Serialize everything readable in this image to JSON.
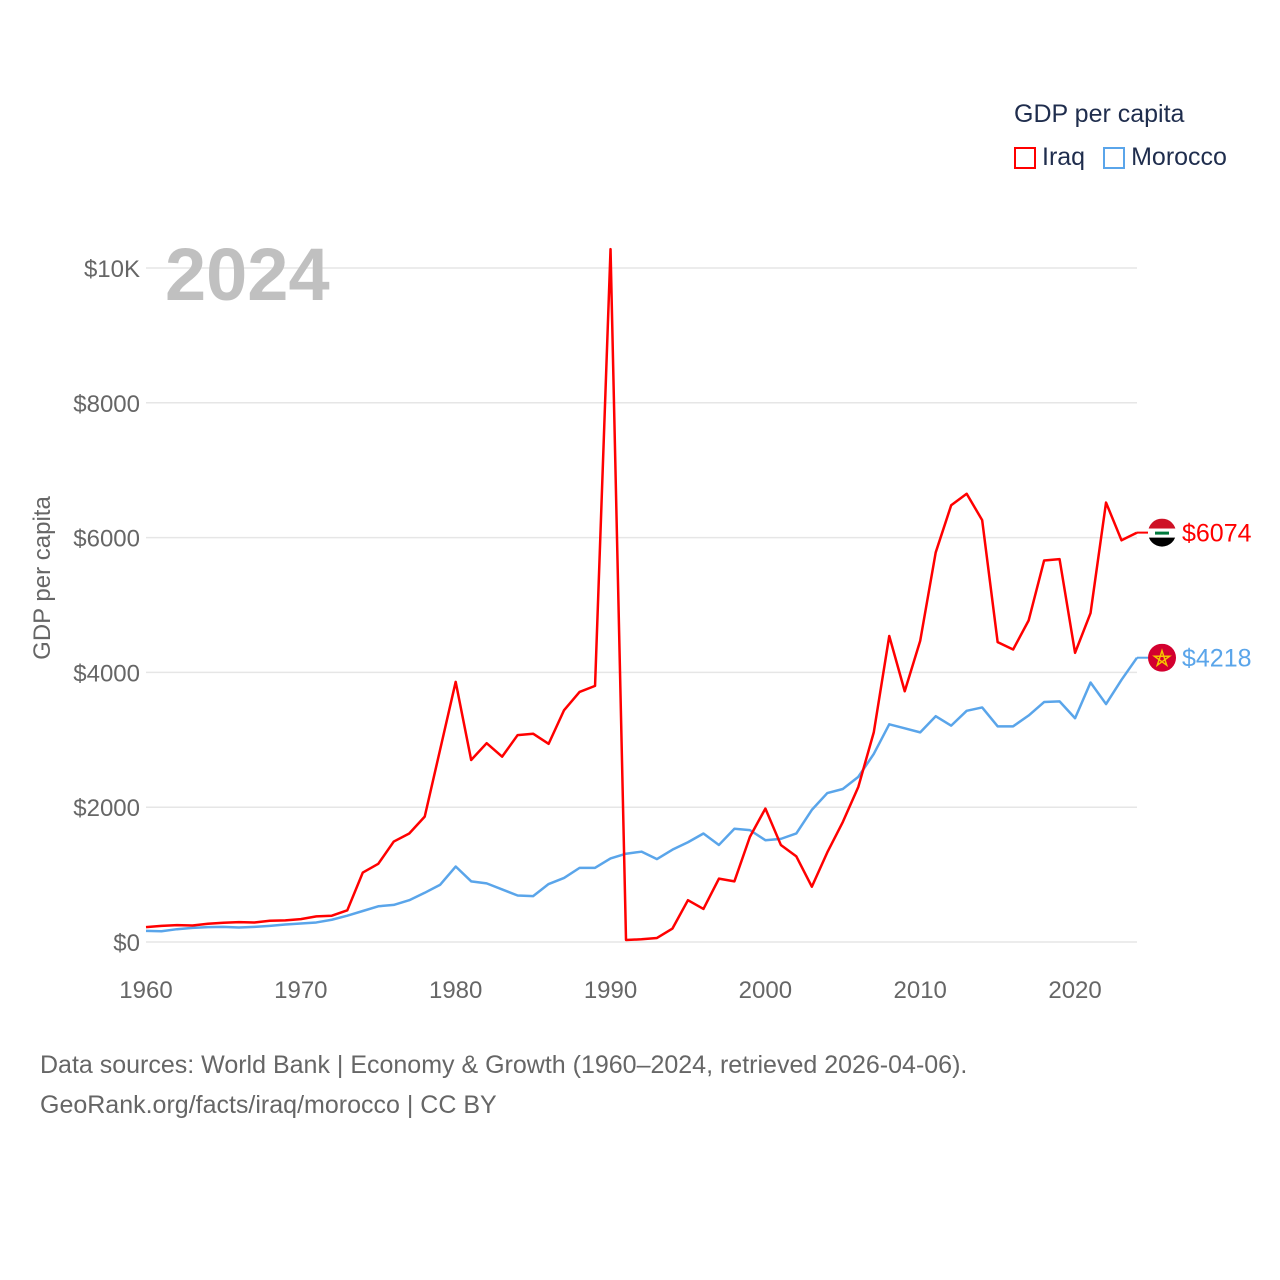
{
  "chart_data": {
    "type": "line",
    "title": "GDP per capita",
    "year_label": "2024",
    "ylabel": "GDP per capita",
    "xlabel": "",
    "xlim": [
      1960,
      2024
    ],
    "ylim": [
      0,
      10000
    ],
    "x_ticks": [
      "1960",
      "1970",
      "1980",
      "1990",
      "2000",
      "2010",
      "2020"
    ],
    "x_tick_values": [
      1960,
      1970,
      1980,
      1990,
      2000,
      2010,
      2020
    ],
    "y_ticks": [
      "$0",
      "$2000",
      "$4000",
      "$6000",
      "$8000",
      "$10K"
    ],
    "y_tick_values": [
      0,
      2000,
      4000,
      6000,
      8000,
      10000
    ],
    "grid": true,
    "legend_position": "top-right",
    "x": [
      1960,
      1961,
      1962,
      1963,
      1964,
      1965,
      1966,
      1967,
      1968,
      1969,
      1970,
      1971,
      1972,
      1973,
      1974,
      1975,
      1976,
      1977,
      1978,
      1979,
      1980,
      1981,
      1982,
      1983,
      1984,
      1985,
      1986,
      1987,
      1988,
      1989,
      1990,
      1991,
      1992,
      1993,
      1994,
      1995,
      1996,
      1997,
      1998,
      1999,
      2000,
      2001,
      2002,
      2003,
      2004,
      2005,
      2006,
      2007,
      2008,
      2009,
      2010,
      2011,
      2012,
      2013,
      2014,
      2015,
      2016,
      2017,
      2018,
      2019,
      2020,
      2021,
      2022,
      2023,
      2024
    ],
    "series": [
      {
        "name": "Iraq",
        "color": "#ff0000",
        "end_label": "$6074",
        "flag": "iraq-flag",
        "values": [
          220,
          240,
          250,
          245,
          270,
          285,
          295,
          290,
          315,
          320,
          340,
          380,
          390,
          470,
          1030,
          1160,
          1490,
          1610,
          1860,
          2860,
          3860,
          2700,
          2950,
          2750,
          3070,
          3090,
          2940,
          3440,
          3710,
          3800,
          10280,
          30,
          40,
          60,
          200,
          620,
          490,
          940,
          900,
          1560,
          1980,
          1440,
          1270,
          820,
          1330,
          1780,
          2300,
          3110,
          4540,
          3720,
          4470,
          5780,
          6480,
          6650,
          6260,
          4450,
          4340,
          4770,
          5660,
          5680,
          4290,
          4880,
          6520,
          5960,
          6074
        ]
      },
      {
        "name": "Morocco",
        "color": "#5aa5ea",
        "end_label": "$4218",
        "flag": "morocco-flag",
        "values": [
          165,
          160,
          190,
          210,
          220,
          225,
          215,
          225,
          240,
          260,
          275,
          290,
          330,
          390,
          460,
          530,
          550,
          620,
          730,
          850,
          1120,
          900,
          870,
          780,
          690,
          680,
          860,
          950,
          1100,
          1100,
          1240,
          1310,
          1340,
          1230,
          1370,
          1480,
          1610,
          1440,
          1680,
          1660,
          1510,
          1530,
          1610,
          1960,
          2210,
          2270,
          2450,
          2790,
          3230,
          3170,
          3110,
          3350,
          3210,
          3430,
          3480,
          3200,
          3200,
          3360,
          3560,
          3570,
          3320,
          3850,
          3530,
          3890,
          4218
        ]
      }
    ]
  },
  "legend": {
    "title": "GDP per capita",
    "items": [
      "Iraq",
      "Morocco"
    ]
  },
  "source": {
    "line1": "Data sources: World Bank | Economy & Growth (1960–2024, retrieved 2026-04-06).",
    "line2": "GeoRank.org/facts/iraq/morocco | CC BY"
  }
}
